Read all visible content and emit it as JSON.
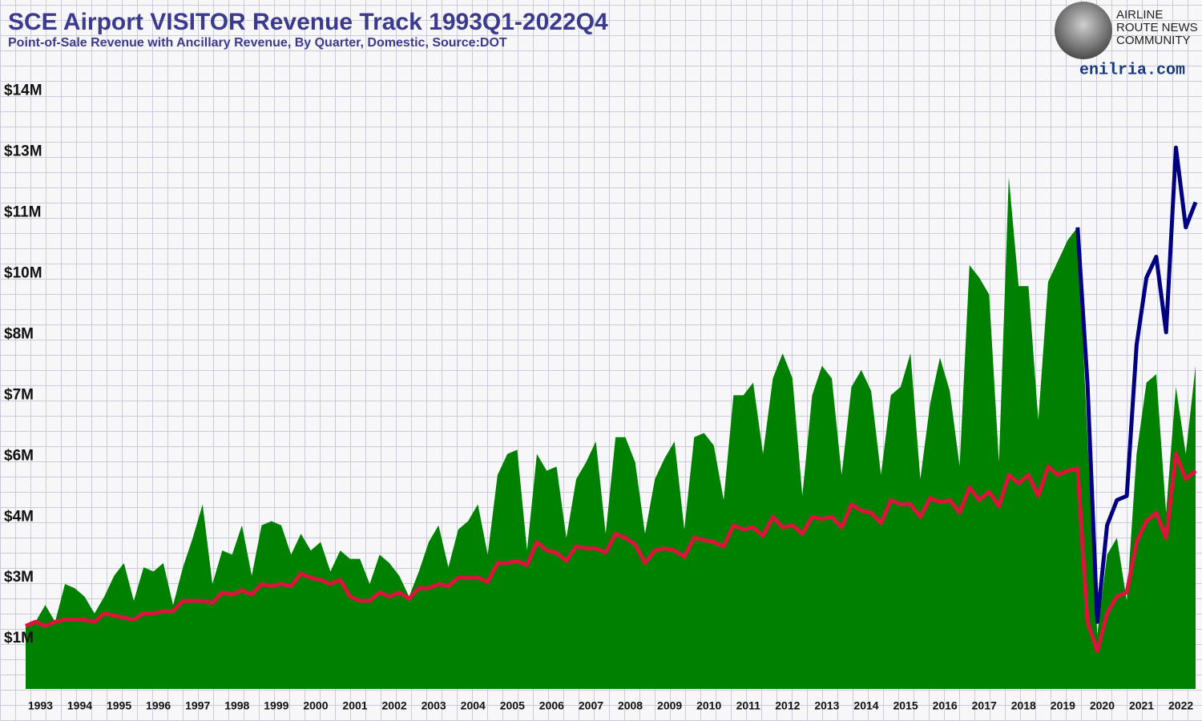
{
  "chart_data": {
    "type": "area-line",
    "title": "SCE Airport VISITOR Revenue Track 1993Q1-2022Q4",
    "subtitle": "Point-of-Sale Revenue with Ancillary Revenue, By Quarter, Domestic, Source:DOT",
    "branding": {
      "lines": [
        "AIRLINE",
        "ROUTE NEWS",
        "COMMUNITY"
      ],
      "url": "enilria.com"
    },
    "categories": [
      null,
      "1993",
      null,
      null,
      null,
      "1994",
      null,
      null,
      null,
      "1995",
      null,
      null,
      null,
      "1996",
      null,
      null,
      null,
      "1997",
      null,
      null,
      null,
      "1998",
      null,
      null,
      null,
      "1999",
      null,
      null,
      null,
      "2000",
      null,
      null,
      null,
      "2001",
      null,
      null,
      null,
      "2002",
      null,
      null,
      null,
      "2003",
      null,
      null,
      null,
      "2004",
      null,
      null,
      null,
      "2005",
      null,
      null,
      null,
      "2006",
      null,
      null,
      null,
      "2007",
      null,
      null,
      null,
      "2008",
      null,
      null,
      null,
      "2009",
      null,
      null,
      null,
      "2010",
      null,
      null,
      null,
      "2011",
      null,
      null,
      null,
      "2012",
      null,
      null,
      null,
      "2013",
      null,
      null,
      null,
      "2014",
      null,
      null,
      null,
      "2015",
      null,
      null,
      null,
      "2016",
      null,
      null,
      null,
      "2017",
      null,
      null,
      null,
      "2018",
      null,
      null,
      null,
      "2019",
      null,
      null,
      null,
      "2020",
      null,
      null,
      null,
      "2021",
      null,
      null,
      null,
      "2022",
      null,
      null
    ],
    "series": [
      {
        "kind": "area",
        "color": "#008000",
        "values": [
          1.5,
          1.6,
          2.0,
          1.6,
          2.5,
          2.4,
          2.2,
          1.8,
          2.2,
          2.7,
          3.0,
          2.1,
          2.9,
          2.8,
          3.0,
          2.0,
          2.9,
          3.6,
          4.4,
          2.5,
          3.3,
          3.2,
          3.9,
          2.7,
          3.9,
          4.0,
          3.9,
          3.2,
          3.7,
          3.3,
          3.5,
          2.8,
          3.3,
          3.1,
          3.1,
          2.5,
          3.2,
          3.0,
          2.7,
          2.2,
          2.8,
          3.5,
          3.9,
          2.9,
          3.8,
          4.0,
          4.4,
          3.2,
          5.1,
          5.6,
          5.7,
          3.3,
          5.6,
          5.2,
          5.3,
          3.6,
          5.0,
          5.4,
          5.9,
          3.7,
          6.0,
          6.0,
          5.4,
          3.7,
          5.0,
          5.5,
          5.9,
          3.8,
          6.0,
          6.1,
          5.8,
          4.5,
          7.0,
          7.0,
          7.3,
          5.6,
          7.4,
          8.0,
          7.4,
          4.6,
          7.0,
          7.7,
          7.4,
          5.1,
          7.2,
          7.6,
          7.1,
          5.1,
          7.0,
          7.2,
          8.0,
          5.0,
          6.8,
          7.9,
          7.1,
          5.3,
          10.1,
          9.8,
          9.4,
          5.4,
          12.2,
          9.6,
          9.6,
          6.4,
          9.7,
          10.2,
          10.7,
          11.0,
          6.0,
          1.3,
          3.2,
          3.6,
          2.1,
          5.6,
          7.3,
          7.5,
          4.2,
          7.2,
          5.6,
          7.7
        ]
      },
      {
        "kind": "line",
        "color": "#dc143c",
        "values": [
          1.5,
          1.6,
          1.5,
          1.6,
          1.65,
          1.65,
          1.65,
          1.6,
          1.8,
          1.75,
          1.7,
          1.65,
          1.8,
          1.8,
          1.85,
          1.85,
          2.1,
          2.1,
          2.1,
          2.05,
          2.3,
          2.25,
          2.35,
          2.25,
          2.5,
          2.45,
          2.5,
          2.45,
          2.75,
          2.65,
          2.6,
          2.5,
          2.6,
          2.2,
          2.1,
          2.1,
          2.3,
          2.2,
          2.3,
          2.15,
          2.4,
          2.4,
          2.5,
          2.45,
          2.65,
          2.65,
          2.65,
          2.55,
          3.0,
          3.0,
          3.05,
          2.95,
          3.5,
          3.3,
          3.25,
          3.05,
          3.4,
          3.35,
          3.35,
          3.25,
          3.7,
          3.6,
          3.45,
          3.0,
          3.3,
          3.35,
          3.3,
          3.15,
          3.6,
          3.55,
          3.5,
          3.4,
          3.9,
          3.8,
          3.85,
          3.65,
          4.1,
          3.85,
          3.9,
          3.7,
          4.1,
          4.05,
          4.1,
          3.85,
          4.4,
          4.25,
          4.2,
          3.95,
          4.5,
          4.4,
          4.4,
          4.1,
          4.55,
          4.45,
          4.5,
          4.2,
          4.8,
          4.5,
          4.7,
          4.35,
          5.1,
          4.9,
          5.1,
          4.6,
          5.3,
          5.1,
          5.2,
          5.25,
          1.6,
          0.9,
          1.8,
          2.2,
          2.3,
          3.5,
          4.0,
          4.2,
          3.6,
          5.6,
          5.0,
          5.2
        ]
      },
      {
        "kind": "line",
        "color": "#000080",
        "values": [
          null,
          null,
          null,
          null,
          null,
          null,
          null,
          null,
          null,
          null,
          null,
          null,
          null,
          null,
          null,
          null,
          null,
          null,
          null,
          null,
          null,
          null,
          null,
          null,
          null,
          null,
          null,
          null,
          null,
          null,
          null,
          null,
          null,
          null,
          null,
          null,
          null,
          null,
          null,
          null,
          null,
          null,
          null,
          null,
          null,
          null,
          null,
          null,
          null,
          null,
          null,
          null,
          null,
          null,
          null,
          null,
          null,
          null,
          null,
          null,
          null,
          null,
          null,
          null,
          null,
          null,
          null,
          null,
          null,
          null,
          null,
          null,
          null,
          null,
          null,
          null,
          null,
          null,
          null,
          null,
          null,
          null,
          null,
          null,
          null,
          null,
          null,
          null,
          null,
          null,
          null,
          null,
          null,
          null,
          null,
          null,
          null,
          null,
          null,
          null,
          null,
          null,
          null,
          null,
          null,
          null,
          null,
          11.0,
          7.3,
          1.6,
          3.9,
          4.5,
          4.6,
          8.2,
          9.8,
          10.3,
          8.5,
          12.9,
          11.0,
          11.6
        ]
      }
    ],
    "ylim": [
      0,
      14.7
    ],
    "yticks": [
      {
        "value": 1.2,
        "label": "$1M"
      },
      {
        "value": 2.65,
        "label": "$3M"
      },
      {
        "value": 4.1,
        "label": "$4M"
      },
      {
        "value": 5.55,
        "label": "$6M"
      },
      {
        "value": 7.0,
        "label": "$7M"
      },
      {
        "value": 8.45,
        "label": "$8M"
      },
      {
        "value": 9.9,
        "label": "$10M"
      },
      {
        "value": 11.35,
        "label": "$11M"
      },
      {
        "value": 12.8,
        "label": "$13M"
      },
      {
        "value": 14.25,
        "label": "$14M"
      }
    ]
  }
}
